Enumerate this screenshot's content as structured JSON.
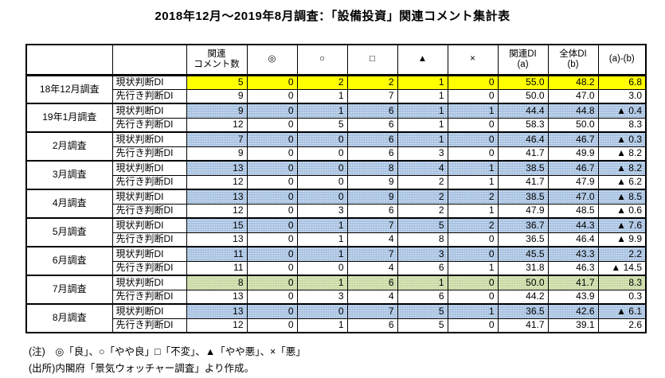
{
  "title": "2018年12月～2019年8月調査：「設備投資」関連コメント集計表",
  "table": {
    "header": {
      "col_month": "",
      "col_type": "",
      "col_comments": "関連\nコメント数",
      "symbols": [
        "◎",
        "○",
        "□",
        "▲",
        "×"
      ],
      "col_related_di": "関連DI\n(a)",
      "col_overall_di": "全体DI\n(b)",
      "col_diff": "(a)-(b)"
    },
    "groups": [
      {
        "month": "18年12月調査",
        "rows": [
          {
            "label": "現状判断DI",
            "highlight": "yellow",
            "values": [
              "5",
              "0",
              "2",
              "2",
              "1",
              "0",
              "55.0",
              "48.2",
              "6.8"
            ]
          },
          {
            "label": "先行き判断DI",
            "highlight": "none",
            "values": [
              "9",
              "0",
              "1",
              "7",
              "1",
              "0",
              "50.0",
              "47.0",
              "3.0"
            ]
          }
        ]
      },
      {
        "month": "19年1月調査",
        "rows": [
          {
            "label": "現状判断DI",
            "highlight": "blue",
            "values": [
              "9",
              "0",
              "1",
              "6",
              "1",
              "1",
              "44.4",
              "44.8",
              "▲ 0.4"
            ]
          },
          {
            "label": "先行き判断DI",
            "highlight": "none",
            "values": [
              "12",
              "0",
              "5",
              "6",
              "1",
              "0",
              "58.3",
              "50.0",
              "8.3"
            ]
          }
        ]
      },
      {
        "month": "2月調査",
        "rows": [
          {
            "label": "現状判断DI",
            "highlight": "blue",
            "values": [
              "7",
              "0",
              "0",
              "6",
              "1",
              "0",
              "46.4",
              "46.7",
              "▲ 0.3"
            ]
          },
          {
            "label": "先行き判断DI",
            "highlight": "none",
            "values": [
              "9",
              "0",
              "0",
              "6",
              "3",
              "0",
              "41.7",
              "49.9",
              "▲ 8.2"
            ]
          }
        ]
      },
      {
        "month": "3月調査",
        "rows": [
          {
            "label": "現状判断DI",
            "highlight": "blue",
            "values": [
              "13",
              "0",
              "0",
              "8",
              "4",
              "1",
              "38.5",
              "46.7",
              "▲ 8.2"
            ]
          },
          {
            "label": "先行き判断DI",
            "highlight": "none",
            "values": [
              "12",
              "0",
              "0",
              "9",
              "2",
              "1",
              "41.7",
              "47.9",
              "▲ 6.2"
            ]
          }
        ]
      },
      {
        "month": "4月調査",
        "rows": [
          {
            "label": "現状判断DI",
            "highlight": "blue",
            "values": [
              "13",
              "0",
              "0",
              "9",
              "2",
              "2",
              "38.5",
              "47.0",
              "▲ 8.5"
            ]
          },
          {
            "label": "先行き判断DI",
            "highlight": "none",
            "values": [
              "12",
              "0",
              "3",
              "6",
              "2",
              "1",
              "47.9",
              "48.5",
              "▲ 0.6"
            ]
          }
        ]
      },
      {
        "month": "5月調査",
        "rows": [
          {
            "label": "現状判断DI",
            "highlight": "blue",
            "values": [
              "15",
              "0",
              "1",
              "7",
              "5",
              "2",
              "36.7",
              "44.3",
              "▲ 7.6"
            ]
          },
          {
            "label": "先行き判断DI",
            "highlight": "none",
            "values": [
              "13",
              "0",
              "1",
              "4",
              "8",
              "0",
              "36.5",
              "46.4",
              "▲ 9.9"
            ]
          }
        ]
      },
      {
        "month": "6月調査",
        "rows": [
          {
            "label": "現状判断DI",
            "highlight": "blue",
            "values": [
              "11",
              "0",
              "1",
              "7",
              "3",
              "0",
              "45.5",
              "43.3",
              "2.2"
            ]
          },
          {
            "label": "先行き判断DI",
            "highlight": "none",
            "values": [
              "11",
              "0",
              "0",
              "4",
              "6",
              "1",
              "31.8",
              "46.3",
              "▲ 14.5"
            ]
          }
        ]
      },
      {
        "month": "7月調査",
        "rows": [
          {
            "label": "現状判断DI",
            "highlight": "green",
            "values": [
              "8",
              "0",
              "1",
              "6",
              "1",
              "0",
              "50.0",
              "41.7",
              "8.3"
            ]
          },
          {
            "label": "先行き判断DI",
            "highlight": "none",
            "values": [
              "13",
              "0",
              "3",
              "4",
              "6",
              "0",
              "44.2",
              "43.9",
              "0.3"
            ]
          }
        ]
      },
      {
        "month": "8月調査",
        "rows": [
          {
            "label": "現状判断DI",
            "highlight": "blue",
            "values": [
              "13",
              "0",
              "0",
              "7",
              "5",
              "1",
              "36.5",
              "42.6",
              "▲ 6.1"
            ]
          },
          {
            "label": "先行き判断DI",
            "highlight": "none",
            "values": [
              "12",
              "0",
              "1",
              "6",
              "5",
              "0",
              "41.7",
              "39.1",
              "2.6"
            ]
          }
        ]
      }
    ]
  },
  "notes": [
    "(注)　◎「良」、○「やや良」□「不変」、▲「やや悪」、×「悪」",
    "(出所)内閣府「景気ウォッチャー調査」より作成。"
  ],
  "colors": {
    "highlight_yellow": "#ffff00",
    "highlight_blue": "#bdd2ea",
    "highlight_green": "#d8e4bf"
  }
}
